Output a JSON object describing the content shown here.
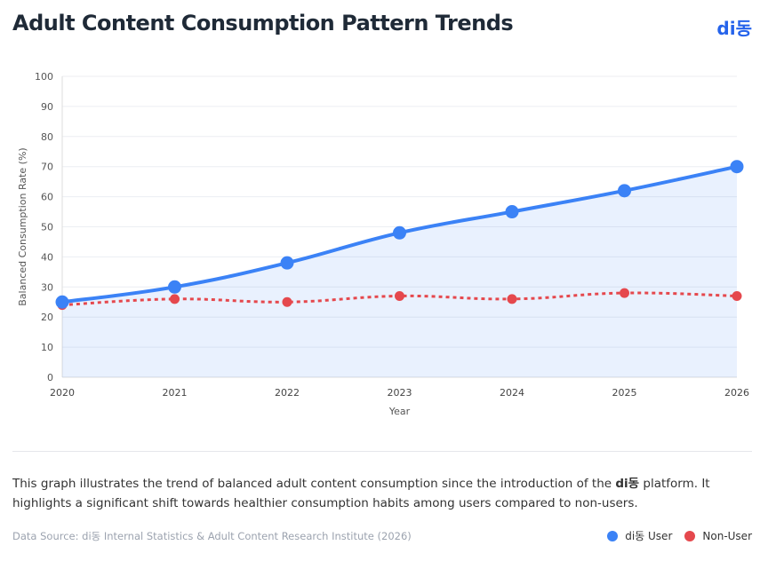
{
  "header": {
    "title": "Adult Content Consumption Pattern Trends",
    "brand": "di동"
  },
  "description": {
    "part1": "This graph illustrates the trend of balanced adult content consumption since the introduction of the ",
    "brand": "di동",
    "part2": " platform. It highlights a significant shift towards healthier consumption habits among users compared to non-users."
  },
  "source": "Data Source: di동 Internal Statistics & Adult Content Research Institute (2026)",
  "chart_data": {
    "type": "line",
    "title": "",
    "xlabel": "Year",
    "ylabel": "Balanced Consumption Rate (%)",
    "ylim": [
      0,
      100
    ],
    "yticks": [
      0,
      10,
      20,
      30,
      40,
      50,
      60,
      70,
      80,
      90,
      100
    ],
    "categories": [
      "2020",
      "2021",
      "2022",
      "2023",
      "2024",
      "2025",
      "2026"
    ],
    "grid": true,
    "legend": "bottom-right",
    "series": [
      {
        "name": "di동 User",
        "values": [
          25,
          30,
          38,
          48,
          55,
          62,
          70
        ],
        "color": "#3b82f6",
        "style": "solid",
        "fill": true
      },
      {
        "name": "Non-User",
        "values": [
          24,
          26,
          25,
          27,
          26,
          28,
          27
        ],
        "color": "#e5484d",
        "style": "dotted",
        "fill": false
      }
    ]
  }
}
